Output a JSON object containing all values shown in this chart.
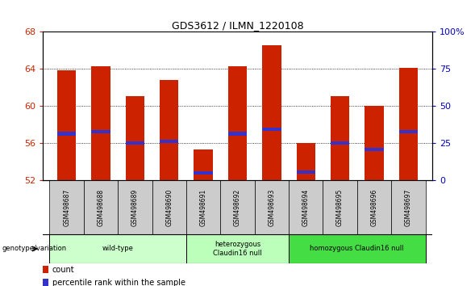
{
  "title": "GDS3612 / ILMN_1220108",
  "samples": [
    "GSM498687",
    "GSM498688",
    "GSM498689",
    "GSM498690",
    "GSM498691",
    "GSM498692",
    "GSM498693",
    "GSM498694",
    "GSM498695",
    "GSM498696",
    "GSM498697"
  ],
  "bar_values": [
    63.8,
    64.3,
    61.0,
    62.8,
    55.3,
    64.3,
    66.5,
    56.0,
    61.0,
    60.0,
    64.1
  ],
  "blue_values": [
    57.0,
    57.2,
    56.0,
    56.2,
    52.8,
    57.0,
    57.5,
    52.9,
    56.0,
    55.3,
    57.2
  ],
  "y_min": 52,
  "y_max": 68,
  "y_ticks_left": [
    52,
    56,
    60,
    64,
    68
  ],
  "y_ticks_right": [
    0,
    25,
    50,
    75,
    100
  ],
  "bar_color": "#CC2200",
  "blue_color": "#3333CC",
  "bar_width": 0.55,
  "group_configs": [
    {
      "indices": [
        0,
        1,
        2,
        3
      ],
      "label": "wild-type",
      "color": "#CCFFCC"
    },
    {
      "indices": [
        4,
        5,
        6
      ],
      "label": "heterozygous\nClaudin16 null",
      "color": "#BBFFBB"
    },
    {
      "indices": [
        7,
        8,
        9,
        10
      ],
      "label": "homozygous Claudin16 null",
      "color": "#44DD44"
    }
  ],
  "genotype_label": "genotype/variation",
  "legend_count": "count",
  "legend_percentile": "percentile rank within the sample",
  "bg_color": "#FFFFFF",
  "tick_label_color_left": "#CC2200",
  "tick_label_color_right": "#0000CC",
  "sample_bg_color": "#CCCCCC"
}
